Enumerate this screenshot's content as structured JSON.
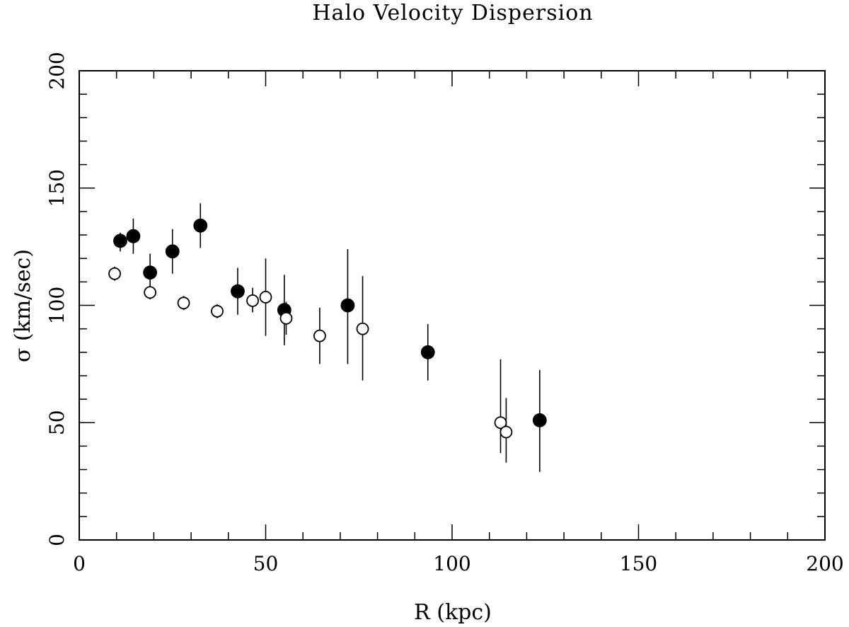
{
  "chart_data": {
    "type": "scatter",
    "title": "Halo Velocity Dispersion",
    "xlabel": "R (kpc)",
    "ylabel": "σ (km/sec)",
    "xlim": [
      0,
      200
    ],
    "ylim": [
      0,
      200
    ],
    "x_ticks": [
      "0",
      "50",
      "100",
      "150",
      "200"
    ],
    "y_ticks": [
      "0",
      "50",
      "100",
      "150",
      "200"
    ],
    "grid": false,
    "series": [
      {
        "name": "filled",
        "marker": "filled-circle",
        "points": [
          {
            "x": 11,
            "y": 127.5,
            "err_lo": 123,
            "err_hi": 131
          },
          {
            "x": 14.5,
            "y": 129.5,
            "err_lo": 122,
            "err_hi": 137
          },
          {
            "x": 19,
            "y": 114,
            "err_lo": 106,
            "err_hi": 122
          },
          {
            "x": 25,
            "y": 123,
            "err_lo": 113.5,
            "err_hi": 132.5
          },
          {
            "x": 32.5,
            "y": 134,
            "err_lo": 124.5,
            "err_hi": 143.5
          },
          {
            "x": 42.5,
            "y": 106,
            "err_lo": 96,
            "err_hi": 116
          },
          {
            "x": 55,
            "y": 98,
            "err_lo": 83,
            "err_hi": 113
          },
          {
            "x": 72,
            "y": 100,
            "err_lo": 75,
            "err_hi": 124
          },
          {
            "x": 93.5,
            "y": 80,
            "err_lo": 68,
            "err_hi": 92
          },
          {
            "x": 123.5,
            "y": 51,
            "err_lo": 29,
            "err_hi": 72.5
          }
        ]
      },
      {
        "name": "open",
        "marker": "open-circle",
        "points": [
          {
            "x": 9.5,
            "y": 113.5,
            "err_lo": 110.5,
            "err_hi": 116.5
          },
          {
            "x": 19,
            "y": 105.5,
            "err_lo": 102.5,
            "err_hi": 108.5
          },
          {
            "x": 28,
            "y": 101,
            "err_lo": 98,
            "err_hi": 104
          },
          {
            "x": 37,
            "y": 97.5,
            "err_lo": 94.5,
            "err_hi": 100.5
          },
          {
            "x": 46.5,
            "y": 102,
            "err_lo": 97,
            "err_hi": 107.5
          },
          {
            "x": 50,
            "y": 103.5,
            "err_lo": 87,
            "err_hi": 120
          },
          {
            "x": 55.5,
            "y": 94.5,
            "err_lo": 87.5,
            "err_hi": 101.5
          },
          {
            "x": 64.5,
            "y": 87,
            "err_lo": 75,
            "err_hi": 99
          },
          {
            "x": 76,
            "y": 90,
            "err_lo": 68,
            "err_hi": 112.5
          },
          {
            "x": 113,
            "y": 50,
            "err_lo": 37,
            "err_hi": 77
          },
          {
            "x": 114.5,
            "y": 46,
            "err_lo": 33,
            "err_hi": 60.5
          }
        ]
      }
    ]
  }
}
